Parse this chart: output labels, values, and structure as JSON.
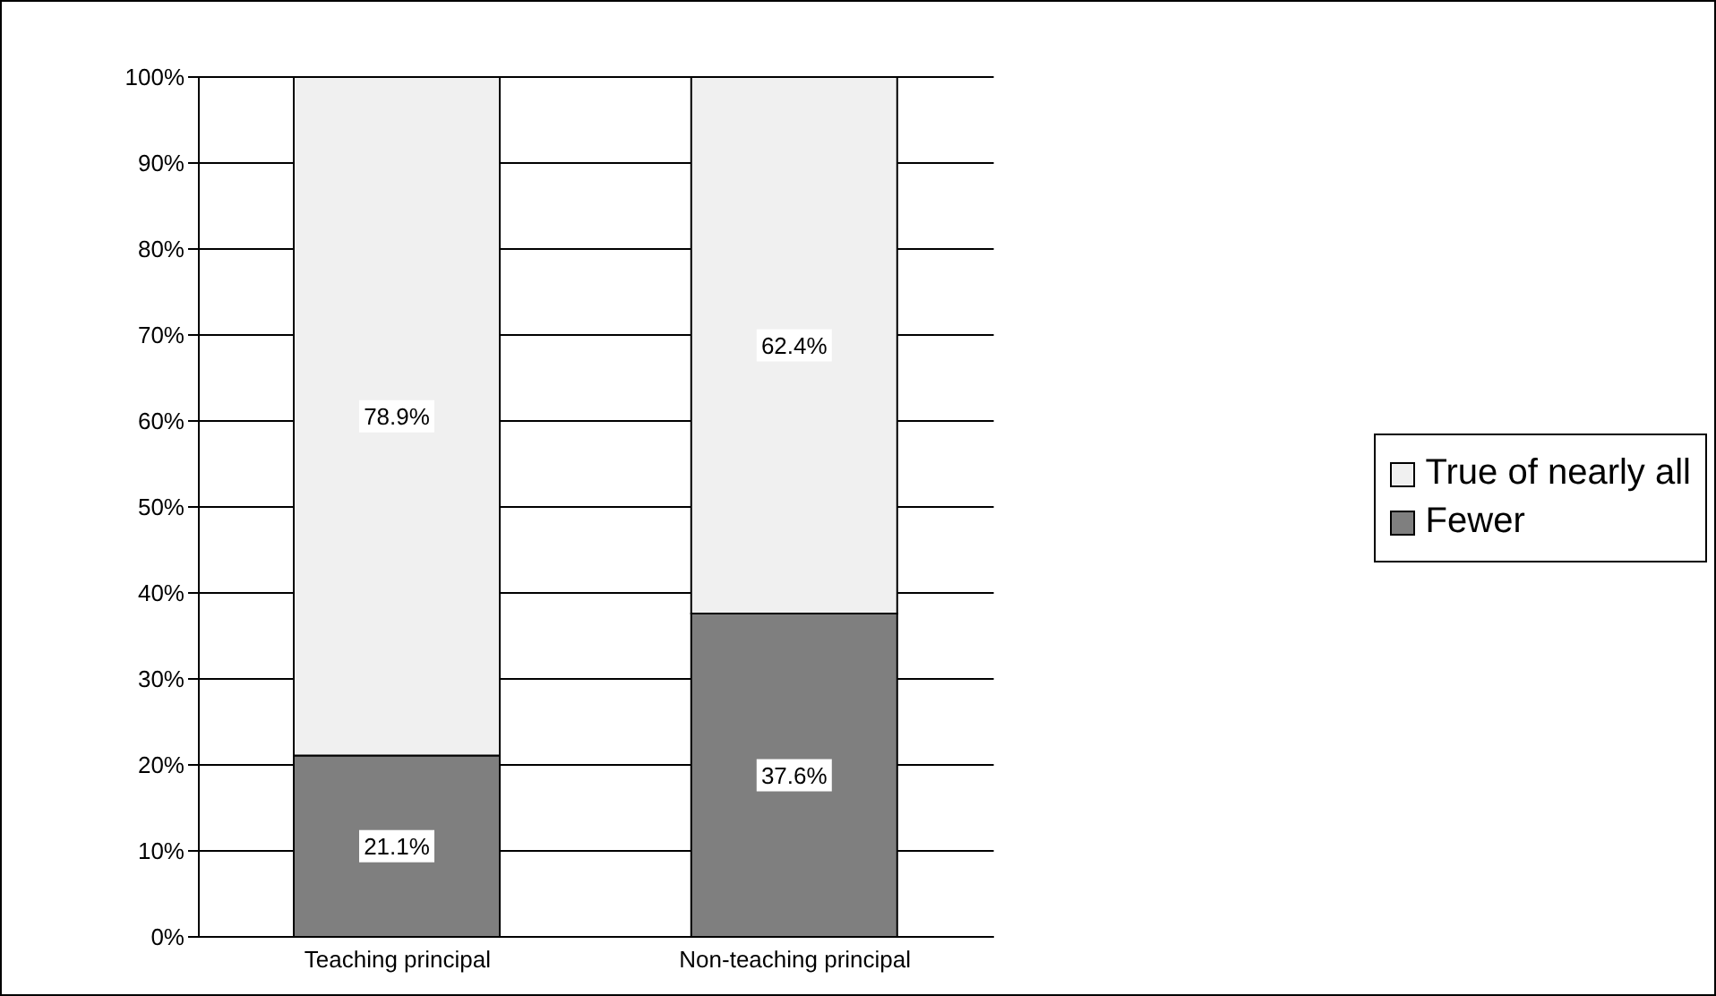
{
  "chart_data": {
    "type": "bar",
    "stacked": true,
    "categories": [
      "Teaching principal",
      "Non-teaching principal"
    ],
    "series": [
      {
        "name": "Fewer",
        "color": "#7f7f7f",
        "values": [
          21.1,
          37.6
        ],
        "value_labels": [
          "21.1%",
          "37.6%"
        ]
      },
      {
        "name": "True of nearly all",
        "color": "#f0f0f0",
        "values": [
          78.9,
          62.4
        ],
        "value_labels": [
          "78.9%",
          "62.4%"
        ]
      }
    ],
    "ylim": [
      0,
      100
    ],
    "yticks": [
      {
        "value": 0,
        "label": "0%"
      },
      {
        "value": 10,
        "label": "10%"
      },
      {
        "value": 20,
        "label": "20%"
      },
      {
        "value": 30,
        "label": "30%"
      },
      {
        "value": 40,
        "label": "40%"
      },
      {
        "value": 50,
        "label": "50%"
      },
      {
        "value": 60,
        "label": "60%"
      },
      {
        "value": 70,
        "label": "70%"
      },
      {
        "value": 80,
        "label": "80%"
      },
      {
        "value": 90,
        "label": "90%"
      },
      {
        "value": 100,
        "label": "100%"
      }
    ],
    "grid": "y",
    "legend": "right"
  }
}
